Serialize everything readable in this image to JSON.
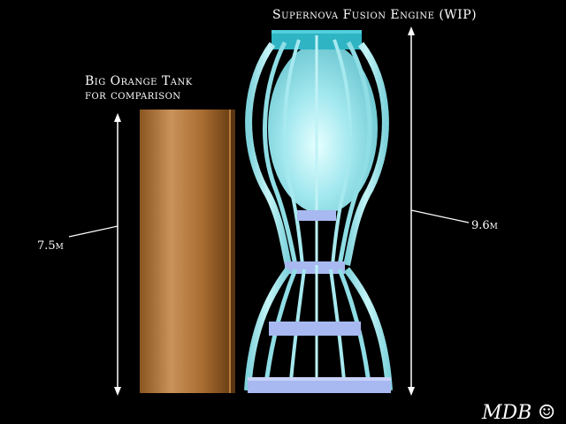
{
  "engine_title": "Supernova Fusion Engine (WIP)",
  "tank_title_line1": "Big Orange Tank",
  "tank_title_line2": "for comparison",
  "tank_height_label": "7.5m",
  "engine_height_label": "9.6m",
  "signature": "MDB ☺",
  "colors": {
    "background": "#000000",
    "tank": "#b77c3f",
    "engine_frame": "#9fe6ee",
    "engine_band": "#a8b8f0",
    "engine_cap": "#2fb4c4"
  }
}
